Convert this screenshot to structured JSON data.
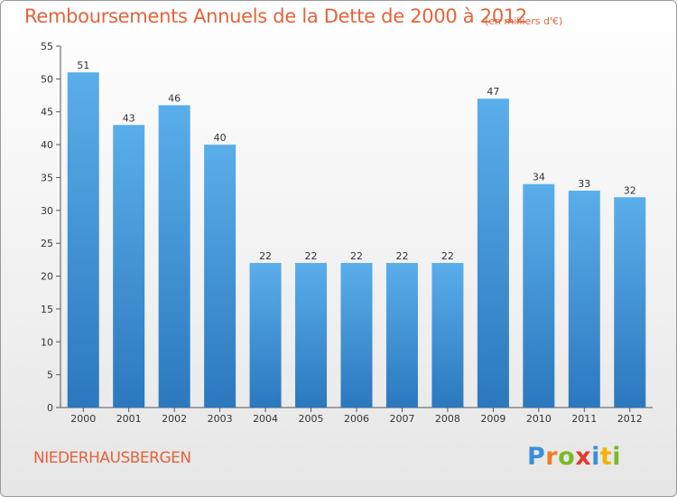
{
  "header": {
    "title": "Remboursements Annuels de la Dette de 2000 à 2012",
    "unit": "(en milliers d'€)"
  },
  "footer": {
    "city": "NIEDERHAUSBERGEN",
    "brand": {
      "letters": [
        "P",
        "r",
        "o",
        "x",
        "i",
        "t",
        "i"
      ],
      "colors": [
        "#3b8fd6",
        "#f07b22",
        "#7cb928",
        "#e53a2c",
        "#3b8fd6",
        "#f0b400",
        "#7cb928"
      ]
    }
  },
  "chart_data": {
    "type": "bar",
    "categories": [
      "2000",
      "2001",
      "2002",
      "2003",
      "2004",
      "2005",
      "2006",
      "2007",
      "2008",
      "2009",
      "2010",
      "2011",
      "2012"
    ],
    "values": [
      51,
      43,
      46,
      40,
      22,
      22,
      22,
      22,
      22,
      47,
      34,
      33,
      32
    ],
    "data_labels": [
      "51",
      "43",
      "46",
      "40",
      "22",
      "22",
      "22",
      "22",
      "22",
      "47",
      "34",
      "33",
      "32"
    ],
    "title": "Remboursements Annuels de la Dette de 2000 à 2012",
    "ylim": [
      0,
      55
    ],
    "y_ticks": [
      0,
      5,
      10,
      15,
      20,
      25,
      30,
      35,
      40,
      45,
      50,
      55
    ],
    "grid": false,
    "bar_color_top": "#5aaeea",
    "bar_color_bottom": "#2b78be"
  }
}
